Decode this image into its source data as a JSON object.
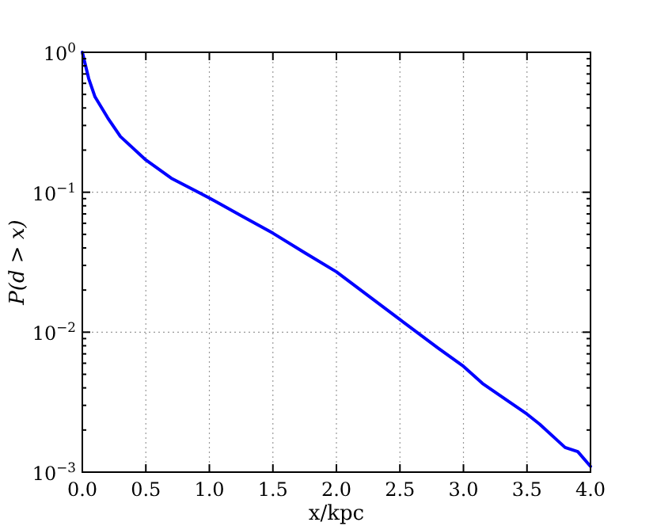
{
  "chart_data": {
    "type": "line",
    "xlabel": "x/kpc",
    "ylabel": "P(d > x)",
    "log": "y",
    "x": [
      0,
      0.05,
      0.1,
      0.2,
      0.3,
      0.5,
      0.7,
      1.0,
      1.25,
      1.5,
      1.75,
      2.0,
      2.5,
      2.8,
      3.0,
      3.15,
      3.5,
      3.6,
      3.8,
      3.9,
      4.0
    ],
    "series": [
      {
        "color": "#0000ff",
        "values": [
          1.0,
          0.65,
          0.48,
          0.34,
          0.25,
          0.17,
          0.126,
          0.091,
          0.068,
          0.051,
          0.037,
          0.027,
          0.0123,
          0.0077,
          0.0057,
          0.0043,
          0.0026,
          0.0022,
          0.0015,
          0.0014,
          0.0011
        ]
      }
    ],
    "xlim": [
      0,
      4
    ],
    "xticks": [
      {
        "value": 0,
        "label": "0.0"
      },
      {
        "value": 0.5,
        "label": "0.5"
      },
      {
        "value": 1,
        "label": "1.0"
      },
      {
        "value": 1.5,
        "label": "1.5"
      },
      {
        "value": 2,
        "label": "2.0"
      },
      {
        "value": 2.5,
        "label": "2.5"
      },
      {
        "value": 3,
        "label": "3.0"
      },
      {
        "value": 3.5,
        "label": "3.5"
      },
      {
        "value": 4,
        "label": "4.0"
      }
    ],
    "ylim": [
      0.001,
      1
    ],
    "yticks": [
      {
        "value": 0.001,
        "label": "10$^{−3}$"
      },
      {
        "value": 0.002,
        "label": null
      },
      {
        "value": 0.003,
        "label": null
      },
      {
        "value": 0.004,
        "label": null
      },
      {
        "value": 0.005,
        "label": null
      },
      {
        "value": 0.006,
        "label": null
      },
      {
        "value": 0.007,
        "label": null
      },
      {
        "value": 0.008,
        "label": null
      },
      {
        "value": 0.009,
        "label": null
      },
      {
        "value": 0.01,
        "label": "10$^{−2}$"
      },
      {
        "value": 0.02,
        "label": null
      },
      {
        "value": 0.03,
        "label": null
      },
      {
        "value": 0.04,
        "label": null
      },
      {
        "value": 0.05,
        "label": null
      },
      {
        "value": 0.06,
        "label": null
      },
      {
        "value": 0.07,
        "label": null
      },
      {
        "value": 0.08,
        "label": null
      },
      {
        "value": 0.09,
        "label": null
      },
      {
        "value": 0.1,
        "label": "10$^{−1}$"
      },
      {
        "value": 0.2,
        "label": null
      },
      {
        "value": 0.3,
        "label": null
      },
      {
        "value": 0.4,
        "label": null
      },
      {
        "value": 0.5,
        "label": null
      },
      {
        "value": 0.6,
        "label": null
      },
      {
        "value": 0.7,
        "label": null
      },
      {
        "value": 0.8,
        "label": null
      },
      {
        "value": 0.9,
        "label": null
      },
      {
        "value": 1,
        "label": "10$^{0}$"
      }
    ],
    "grid": true,
    "marker": "none",
    "line_style": "solid"
  }
}
